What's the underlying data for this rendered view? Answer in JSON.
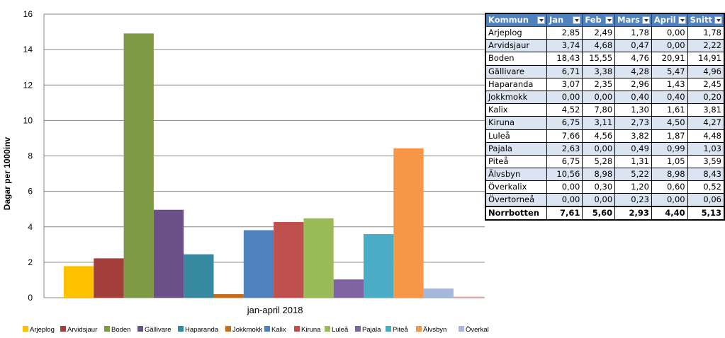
{
  "chart_data": {
    "type": "bar",
    "title": "",
    "xlabel": "jan-april 2018",
    "ylabel": "Dagar per 1000inv",
    "ylim": [
      0,
      16
    ],
    "yticks": [
      0,
      2,
      4,
      6,
      8,
      10,
      12,
      14,
      16
    ],
    "grid": true,
    "legend": "bottom",
    "categories": [
      "jan-april 2018"
    ],
    "series": [
      {
        "name": "Arjeplog",
        "values": [
          1.78
        ],
        "color": "#ffc000"
      },
      {
        "name": "Arvidsjaur",
        "values": [
          2.22
        ],
        "color": "#a33f3a"
      },
      {
        "name": "Boden",
        "values": [
          14.91
        ],
        "color": "#7f9a45"
      },
      {
        "name": "Gällivare",
        "values": [
          4.96
        ],
        "color": "#6b4f87"
      },
      {
        "name": "Haparanda",
        "values": [
          2.45
        ],
        "color": "#37899f"
      },
      {
        "name": "Jokkmokk",
        "values": [
          0.2
        ],
        "color": "#c66d1c"
      },
      {
        "name": "Kalix",
        "values": [
          3.81
        ],
        "color": "#4f81bd"
      },
      {
        "name": "Kiruna",
        "values": [
          4.27
        ],
        "color": "#c0504d"
      },
      {
        "name": "Luleå",
        "values": [
          4.48
        ],
        "color": "#9bbb59"
      },
      {
        "name": "Pajala",
        "values": [
          1.03
        ],
        "color": "#8064a2"
      },
      {
        "name": "Piteå",
        "values": [
          3.59
        ],
        "color": "#4bacc6"
      },
      {
        "name": "Älvsbyn",
        "values": [
          8.43
        ],
        "color": "#f79646"
      },
      {
        "name": "Överkalix",
        "values": [
          0.52
        ],
        "color": "#a5b7da"
      },
      {
        "name": "Övertorneå",
        "values": [
          0.06
        ],
        "color": "#e2a9a6"
      }
    ]
  },
  "table": {
    "headers": [
      "Kommun",
      "Jan",
      "Feb",
      "Mars",
      "April",
      "Snitt"
    ],
    "rows": [
      [
        "Arjeplog",
        "2,85",
        "2,49",
        "1,78",
        "0,00",
        "1,78"
      ],
      [
        "Arvidsjaur",
        "3,74",
        "4,68",
        "0,47",
        "0,00",
        "2,22"
      ],
      [
        "Boden",
        "18,43",
        "15,55",
        "4,76",
        "20,91",
        "14,91"
      ],
      [
        "Gällivare",
        "6,71",
        "3,38",
        "4,28",
        "5,47",
        "4,96"
      ],
      [
        "Haparanda",
        "3,07",
        "2,35",
        "2,96",
        "1,43",
        "2,45"
      ],
      [
        "Jokkmokk",
        "0,00",
        "0,00",
        "0,40",
        "0,40",
        "0,20"
      ],
      [
        "Kalix",
        "4,52",
        "7,80",
        "1,30",
        "1,61",
        "3,81"
      ],
      [
        "Kiruna",
        "6,75",
        "3,11",
        "2,73",
        "4,50",
        "4,27"
      ],
      [
        "Luleå",
        "7,66",
        "4,56",
        "3,82",
        "1,87",
        "4,48"
      ],
      [
        "Pajala",
        "2,63",
        "0,00",
        "0,49",
        "0,99",
        "1,03"
      ],
      [
        "Piteå",
        "6,75",
        "5,28",
        "1,31",
        "1,05",
        "3,59"
      ],
      [
        "Älvsbyn",
        "10,56",
        "8,98",
        "5,22",
        "8,98",
        "8,43"
      ],
      [
        "Överkalix",
        "0,00",
        "0,30",
        "1,20",
        "0,60",
        "0,52"
      ],
      [
        "Övertorneå",
        "0,00",
        "0,00",
        "0,23",
        "0,00",
        "0,06"
      ]
    ],
    "total": [
      "Norrbotten",
      "7,61",
      "5,60",
      "2,93",
      "4,40",
      "5,13"
    ]
  }
}
